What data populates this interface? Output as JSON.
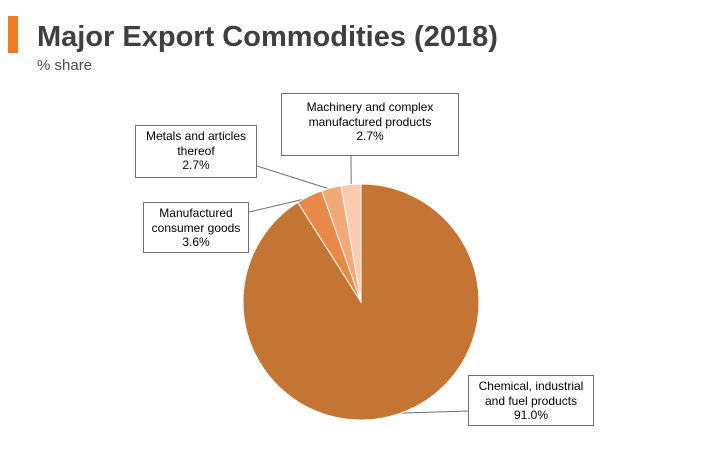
{
  "header": {
    "title": "Major Export Commodities (2018)",
    "subtitle": "% share",
    "accent_color": "#ef7c22"
  },
  "chart_data": {
    "type": "pie",
    "title": "Major Export Commodities (2018)",
    "subtitle": "% share",
    "unit": "%",
    "start_angle_deg": 0,
    "direction": "clockwise",
    "slices": [
      {
        "label_lines": [
          "Chemical, industrial",
          "and fuel products"
        ],
        "value": 91.0,
        "value_label": "91.0%",
        "color": "#c47534"
      },
      {
        "label_lines": [
          "Manufactured",
          "consumer goods"
        ],
        "value": 3.6,
        "value_label": "3.6%",
        "color": "#e8894a"
      },
      {
        "label_lines": [
          "Metals and articles",
          "thereof"
        ],
        "value": 2.7,
        "value_label": "2.7%",
        "color": "#f3a878"
      },
      {
        "label_lines": [
          "Machinery and complex",
          "manufactured products"
        ],
        "value": 2.7,
        "value_label": "2.7%",
        "color": "#f9cbb0"
      }
    ]
  }
}
